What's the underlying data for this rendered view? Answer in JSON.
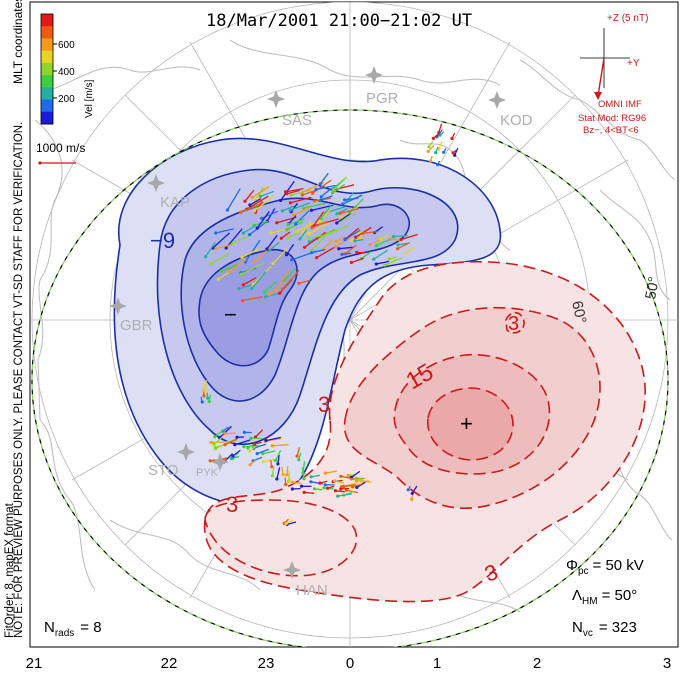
{
  "title": "18/Mar/2001 21:00−21:02 UT",
  "colorbar": {
    "label": "Vel [m/s]",
    "ticks": [
      "600",
      "400",
      "200"
    ],
    "colors": [
      "#1a1ad8",
      "#1d6de8",
      "#22b0a0",
      "#3ecf3e",
      "#8fd62a",
      "#e8d422",
      "#f59a1a",
      "#f05a10",
      "#e01a1a"
    ]
  },
  "side_label_right": "MLT coordinates",
  "side_label_left": "NOTE: FOR PREVIEW PURPOSES ONLY. PLEASE CONTACT VT-SD STAFF FOR VERIFICATION.",
  "fit_label": "FitOrder: 8, mapEX format",
  "velocity_scale": "1000 m/s",
  "imf": {
    "top_label": "+Z (5 nT)",
    "right_label": "+Y",
    "source": "OMNI IMF",
    "model": "Stat Mod: RG96",
    "condition": "Bz−, 4<BT<6",
    "color": "#d01818"
  },
  "stations": [
    "PGR",
    "KOD",
    "SAS",
    "KAP",
    "GBR",
    "STO",
    "PYK",
    "HAN"
  ],
  "contour_labels": {
    "negative": [
      "−9"
    ],
    "positive": [
      "15",
      "3",
      "3",
      "3",
      "3"
    ]
  },
  "extrema": {
    "min_symbol": "−",
    "max_symbol": "+"
  },
  "latitude_labels": [
    "50°",
    "60°"
  ],
  "stats": {
    "phi_pc": "= 50 kV",
    "lambda_hm": "= 50°",
    "n_vc": "= 323",
    "n_rads": "= 8"
  },
  "stat_symbols": {
    "phi": "Φ",
    "phi_sub": "pc",
    "lambda": "Λ",
    "lambda_sub": "HM",
    "n": "N",
    "n_sub_vc": "vc",
    "n_sub_rads": "rads"
  },
  "mlt_ticks": [
    "21",
    "22",
    "23",
    "0",
    "1",
    "2",
    "3"
  ],
  "colors": {
    "negative": "#1a2fa8",
    "positive": "#cc1a1a",
    "boundary": "#20a020",
    "coast": "#c0c0c0"
  }
}
